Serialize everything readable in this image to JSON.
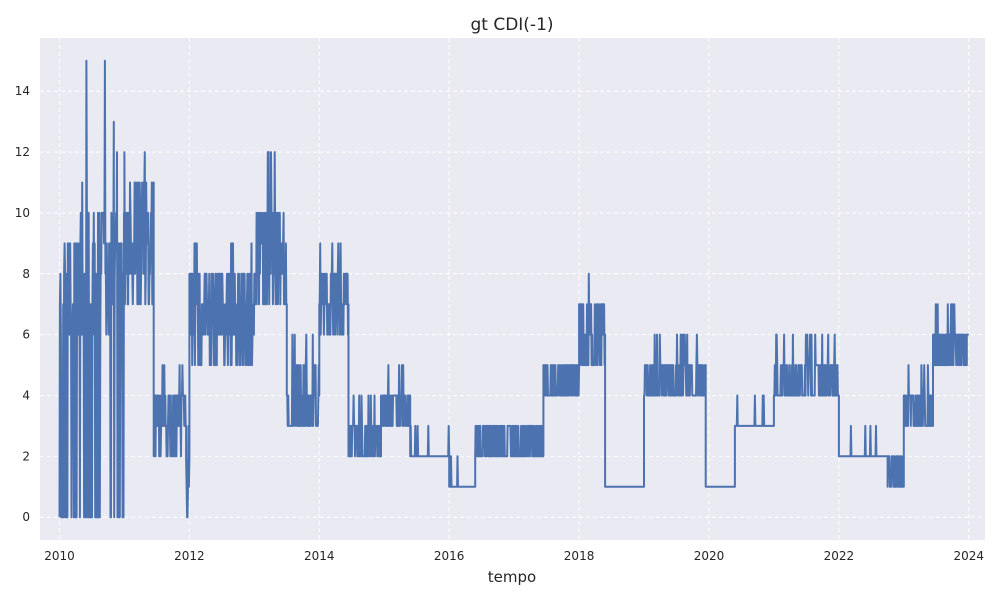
{
  "chart_data": {
    "type": "line",
    "title": "gt CDI(-1)",
    "xlabel": "tempo",
    "ylabel": "",
    "xlim": [
      2009.7,
      2024.25
    ],
    "ylim": [
      -0.75,
      15.75
    ],
    "x_ticks": [
      2010,
      2012,
      2014,
      2016,
      2018,
      2020,
      2022,
      2024
    ],
    "x_tick_labels": [
      "2010",
      "2012",
      "2014",
      "2016",
      "2018",
      "2020",
      "2022",
      "2024"
    ],
    "y_ticks": [
      0,
      2,
      4,
      6,
      8,
      10,
      12,
      14
    ],
    "y_tick_labels": [
      "0",
      "2",
      "4",
      "6",
      "8",
      "10",
      "12",
      "14"
    ],
    "grid": true,
    "series": [
      {
        "color": "#4c72b0",
        "segments": [
          {
            "x0": 2010.0,
            "x1": 2010.4,
            "low": 0,
            "high": 9,
            "peak": 12,
            "noise": "spiky"
          },
          {
            "x0": 2010.4,
            "x1": 2011.0,
            "low": 0,
            "high": 10,
            "peak": 15,
            "noise": "spiky"
          },
          {
            "x0": 2011.0,
            "x1": 2011.45,
            "low": 7,
            "high": 11,
            "peak": 12,
            "noise": "dense"
          },
          {
            "x0": 2011.45,
            "x1": 2011.95,
            "low": 2,
            "high": 4,
            "peak": 5,
            "noise": "dense"
          },
          {
            "x0": 2011.95,
            "x1": 2012.0,
            "low": 0,
            "high": 3,
            "peak": 3,
            "noise": "dense"
          },
          {
            "x0": 2012.0,
            "x1": 2013.0,
            "low": 5,
            "high": 8,
            "peak": 9,
            "noise": "dense"
          },
          {
            "x0": 2013.0,
            "x1": 2013.5,
            "low": 7,
            "high": 10,
            "peak": 12,
            "noise": "dense"
          },
          {
            "x0": 2013.5,
            "x1": 2014.0,
            "low": 3,
            "high": 5,
            "peak": 6,
            "noise": "dense"
          },
          {
            "x0": 2014.0,
            "x1": 2014.45,
            "low": 6,
            "high": 8,
            "peak": 9,
            "noise": "dense"
          },
          {
            "x0": 2014.45,
            "x1": 2014.95,
            "low": 2,
            "high": 3,
            "peak": 4,
            "noise": "dense"
          },
          {
            "x0": 2014.95,
            "x1": 2015.4,
            "low": 3,
            "high": 4,
            "peak": 5,
            "noise": "dense"
          },
          {
            "x0": 2015.4,
            "x1": 2016.0,
            "low": 2,
            "high": 2,
            "peak": 3,
            "noise": "sparse"
          },
          {
            "x0": 2016.0,
            "x1": 2016.4,
            "low": 1,
            "high": 1,
            "peak": 2,
            "noise": "sparse"
          },
          {
            "x0": 2016.4,
            "x1": 2017.45,
            "low": 2,
            "high": 3,
            "peak": 3,
            "noise": "dense"
          },
          {
            "x0": 2017.45,
            "x1": 2018.0,
            "low": 4,
            "high": 5,
            "peak": 5,
            "noise": "dense"
          },
          {
            "x0": 2018.0,
            "x1": 2018.4,
            "low": 5,
            "high": 7,
            "peak": 8,
            "noise": "dense"
          },
          {
            "x0": 2018.4,
            "x1": 2019.0,
            "low": 1,
            "high": 1,
            "peak": 1,
            "noise": "flat"
          },
          {
            "x0": 2019.0,
            "x1": 2019.95,
            "low": 4,
            "high": 5,
            "peak": 6,
            "noise": "dense"
          },
          {
            "x0": 2019.95,
            "x1": 2020.4,
            "low": 1,
            "high": 1,
            "peak": 2,
            "noise": "sparse"
          },
          {
            "x0": 2020.4,
            "x1": 2021.0,
            "low": 3,
            "high": 3,
            "peak": 4,
            "noise": "sparse"
          },
          {
            "x0": 2021.0,
            "x1": 2022.0,
            "low": 4,
            "high": 5,
            "peak": 6,
            "noise": "dense"
          },
          {
            "x0": 2022.0,
            "x1": 2022.75,
            "low": 2,
            "high": 2,
            "peak": 3,
            "noise": "sparse"
          },
          {
            "x0": 2022.75,
            "x1": 2023.0,
            "low": 1,
            "high": 2,
            "peak": 2,
            "noise": "dense"
          },
          {
            "x0": 2023.0,
            "x1": 2023.45,
            "low": 3,
            "high": 4,
            "peak": 5,
            "noise": "dense"
          },
          {
            "x0": 2023.45,
            "x1": 2023.97,
            "low": 5,
            "high": 6,
            "peak": 7,
            "noise": "dense"
          },
          {
            "x0": 2023.97,
            "x1": 2024.0,
            "low": 6,
            "high": 7,
            "peak": 7,
            "noise": "flat"
          }
        ]
      }
    ]
  }
}
